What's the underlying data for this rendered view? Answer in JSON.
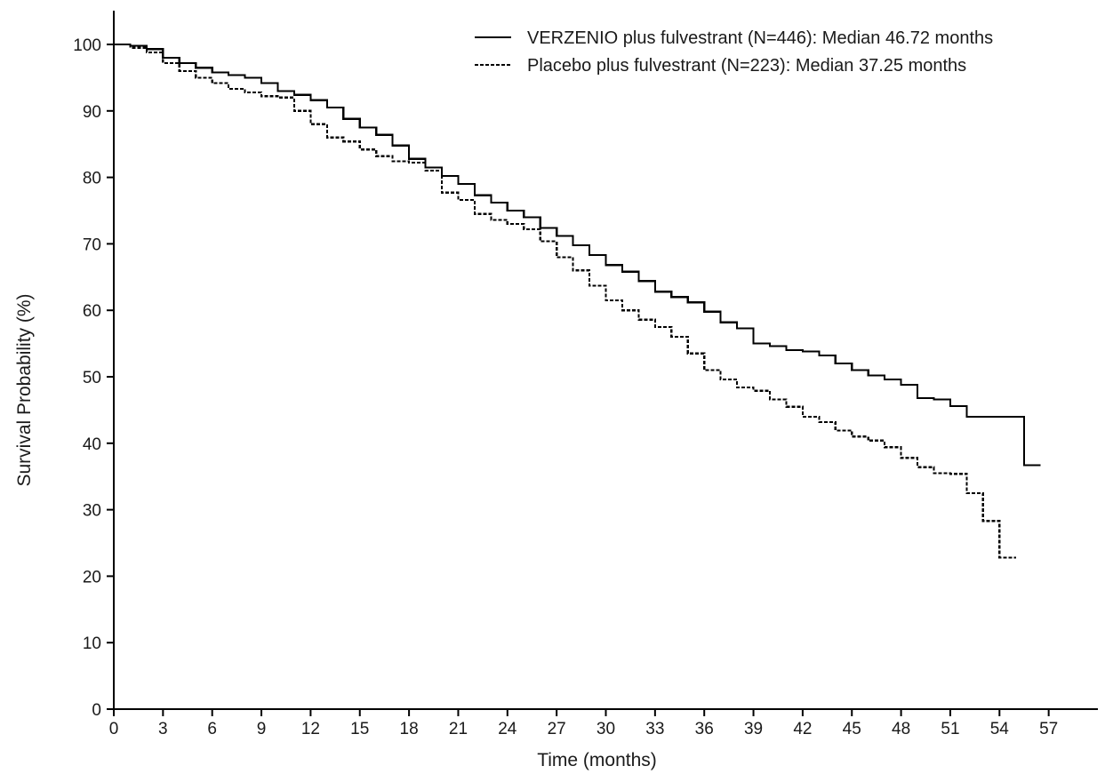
{
  "chart_data": {
    "type": "line",
    "title": "",
    "xlabel": "Time (months)",
    "ylabel": "Survival Probability (%)",
    "xlim": [
      0,
      60
    ],
    "ylim": [
      0,
      100
    ],
    "x_ticks": [
      0,
      3,
      6,
      9,
      12,
      15,
      18,
      21,
      24,
      27,
      30,
      33,
      36,
      39,
      42,
      45,
      48,
      51,
      54,
      57
    ],
    "y_ticks": [
      0,
      10,
      20,
      30,
      40,
      50,
      60,
      70,
      80,
      90,
      100
    ],
    "grid": false,
    "legend_position": "top-right",
    "series": [
      {
        "name": "VERZENIO plus fulvestrant (N=446): Median 46.72 months",
        "line_style": "solid",
        "color": "#000000",
        "x": [
          0,
          1,
          2,
          3,
          4,
          5,
          6,
          7,
          8,
          9,
          10,
          11,
          12,
          13,
          14,
          15,
          16,
          17,
          18,
          19,
          20,
          21,
          22,
          23,
          24,
          25,
          26,
          27,
          28,
          29,
          30,
          31,
          32,
          33,
          34,
          35,
          36,
          37,
          38,
          39,
          40,
          41,
          42,
          43,
          44,
          45,
          46,
          47,
          48,
          49,
          50,
          51,
          52,
          55.5,
          56.5
        ],
        "y": [
          100,
          99.8,
          99.3,
          98,
          97.2,
          96.5,
          95.8,
          95.4,
          95,
          94.2,
          93,
          92.4,
          91.6,
          90.5,
          88.8,
          87.5,
          86.4,
          84.8,
          82.8,
          81.5,
          80.2,
          79,
          77.3,
          76.2,
          75,
          74,
          72.4,
          71.2,
          69.8,
          68.3,
          66.8,
          65.8,
          64.4,
          62.8,
          62,
          61.2,
          59.8,
          58.2,
          57.3,
          55,
          54.6,
          54,
          53.8,
          53.2,
          52,
          51,
          50.2,
          49.6,
          48.8,
          46.8,
          46.6,
          45.6,
          44,
          36.7,
          36.7
        ]
      },
      {
        "name": "Placebo plus fulvestrant (N=223): Median 37.25 months",
        "line_style": "dashed",
        "color": "#000000",
        "x": [
          0,
          1,
          2,
          3,
          4,
          5,
          6,
          7,
          8,
          9,
          10,
          11,
          12,
          13,
          14,
          15,
          16,
          17,
          18,
          19,
          20,
          21,
          22,
          23,
          24,
          25,
          26,
          27,
          28,
          29,
          30,
          31,
          32,
          33,
          34,
          35,
          36,
          37,
          38,
          39,
          40,
          41,
          42,
          43,
          44,
          45,
          46,
          47,
          48,
          49,
          50,
          51,
          52,
          53,
          54,
          55
        ],
        "y": [
          100,
          99.5,
          98.8,
          97.2,
          96,
          95,
          94.2,
          93.3,
          92.8,
          92.2,
          92,
          90,
          88,
          86,
          85.4,
          84.2,
          83.2,
          82.4,
          82.2,
          81,
          77.7,
          76.6,
          74.5,
          73.6,
          73,
          72.2,
          70.4,
          68,
          66,
          63.7,
          61.5,
          60,
          58.6,
          57.5,
          56,
          53.5,
          51,
          49.6,
          48.4,
          47.9,
          46.6,
          45.5,
          44,
          43.2,
          41.9,
          41,
          40.4,
          39.4,
          37.8,
          36.4,
          35.5,
          35.4,
          32.5,
          28.3,
          22.8,
          22.8
        ]
      }
    ]
  }
}
